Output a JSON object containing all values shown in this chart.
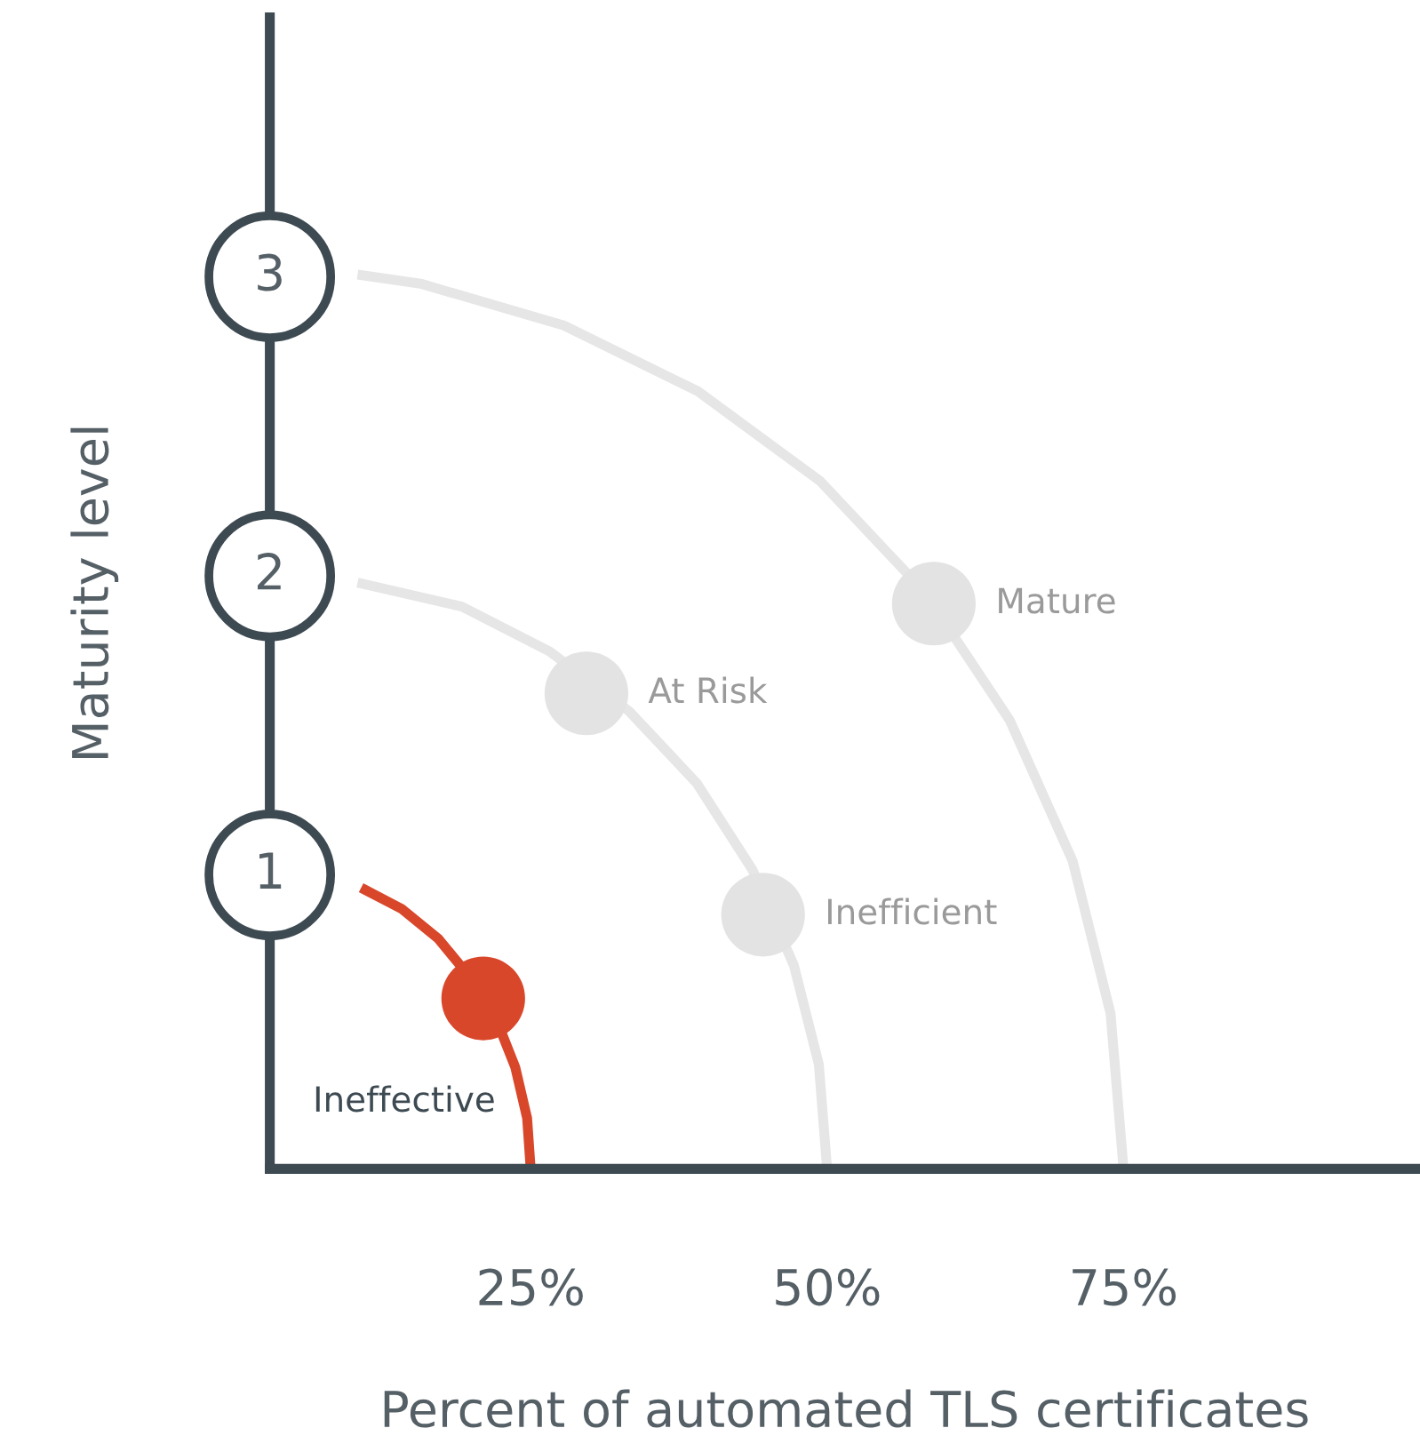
{
  "chart_data": {
    "type": "line",
    "xlabel": "Percent of automated TLS certificates",
    "ylabel": "Maturity level",
    "xlim": [
      3,
      100
    ],
    "ylim": [
      0,
      3.85
    ],
    "xticks": [
      {
        "value": 25,
        "label": "25%"
      },
      {
        "value": 50,
        "label": "50%"
      },
      {
        "value": 75,
        "label": "75%"
      }
    ],
    "yticks": [
      1,
      2,
      3
    ],
    "grid": false,
    "legend": false,
    "series": [
      {
        "color": "#d9472b",
        "x": [
          25,
          24.7,
          23.7,
          22.1,
          19.9,
          17.2,
          14.1,
          10.7
        ],
        "values": [
          0,
          0.17,
          0.34,
          0.5,
          0.64,
          0.77,
          0.87,
          0.94
        ]
      },
      {
        "color": "#e6e6e6",
        "x": [
          50,
          49.3,
          47.2,
          43.7,
          39.0,
          33.3,
          26.6,
          19.2,
          10.4
        ],
        "values": [
          0,
          0.35,
          0.68,
          1,
          1.29,
          1.53,
          1.73,
          1.88,
          1.96
        ]
      },
      {
        "color": "#e6e6e6",
        "x": [
          75,
          73.9,
          70.7,
          65.4,
          58.2,
          49.4,
          39.1,
          27.8,
          15.7,
          10.4
        ],
        "values": [
          0,
          0.52,
          1.03,
          1.5,
          1.93,
          2.3,
          2.6,
          2.82,
          2.96,
          2.99
        ]
      },
      {
        "type": "scatter",
        "name": "Ineffective",
        "color": "#d9472b",
        "x": [
          21
        ],
        "values": [
          0.57
        ]
      },
      {
        "type": "scatter",
        "name": "Inefficient",
        "color": "#e3e3e3",
        "x": [
          44.6
        ],
        "values": [
          0.85
        ]
      },
      {
        "type": "scatter",
        "name": "At Risk",
        "color": "#e3e3e3",
        "x": [
          29.7
        ],
        "values": [
          1.59
        ]
      },
      {
        "type": "scatter",
        "name": "Mature",
        "color": "#e3e3e3",
        "x": [
          59
        ],
        "values": [
          1.89
        ]
      }
    ]
  }
}
